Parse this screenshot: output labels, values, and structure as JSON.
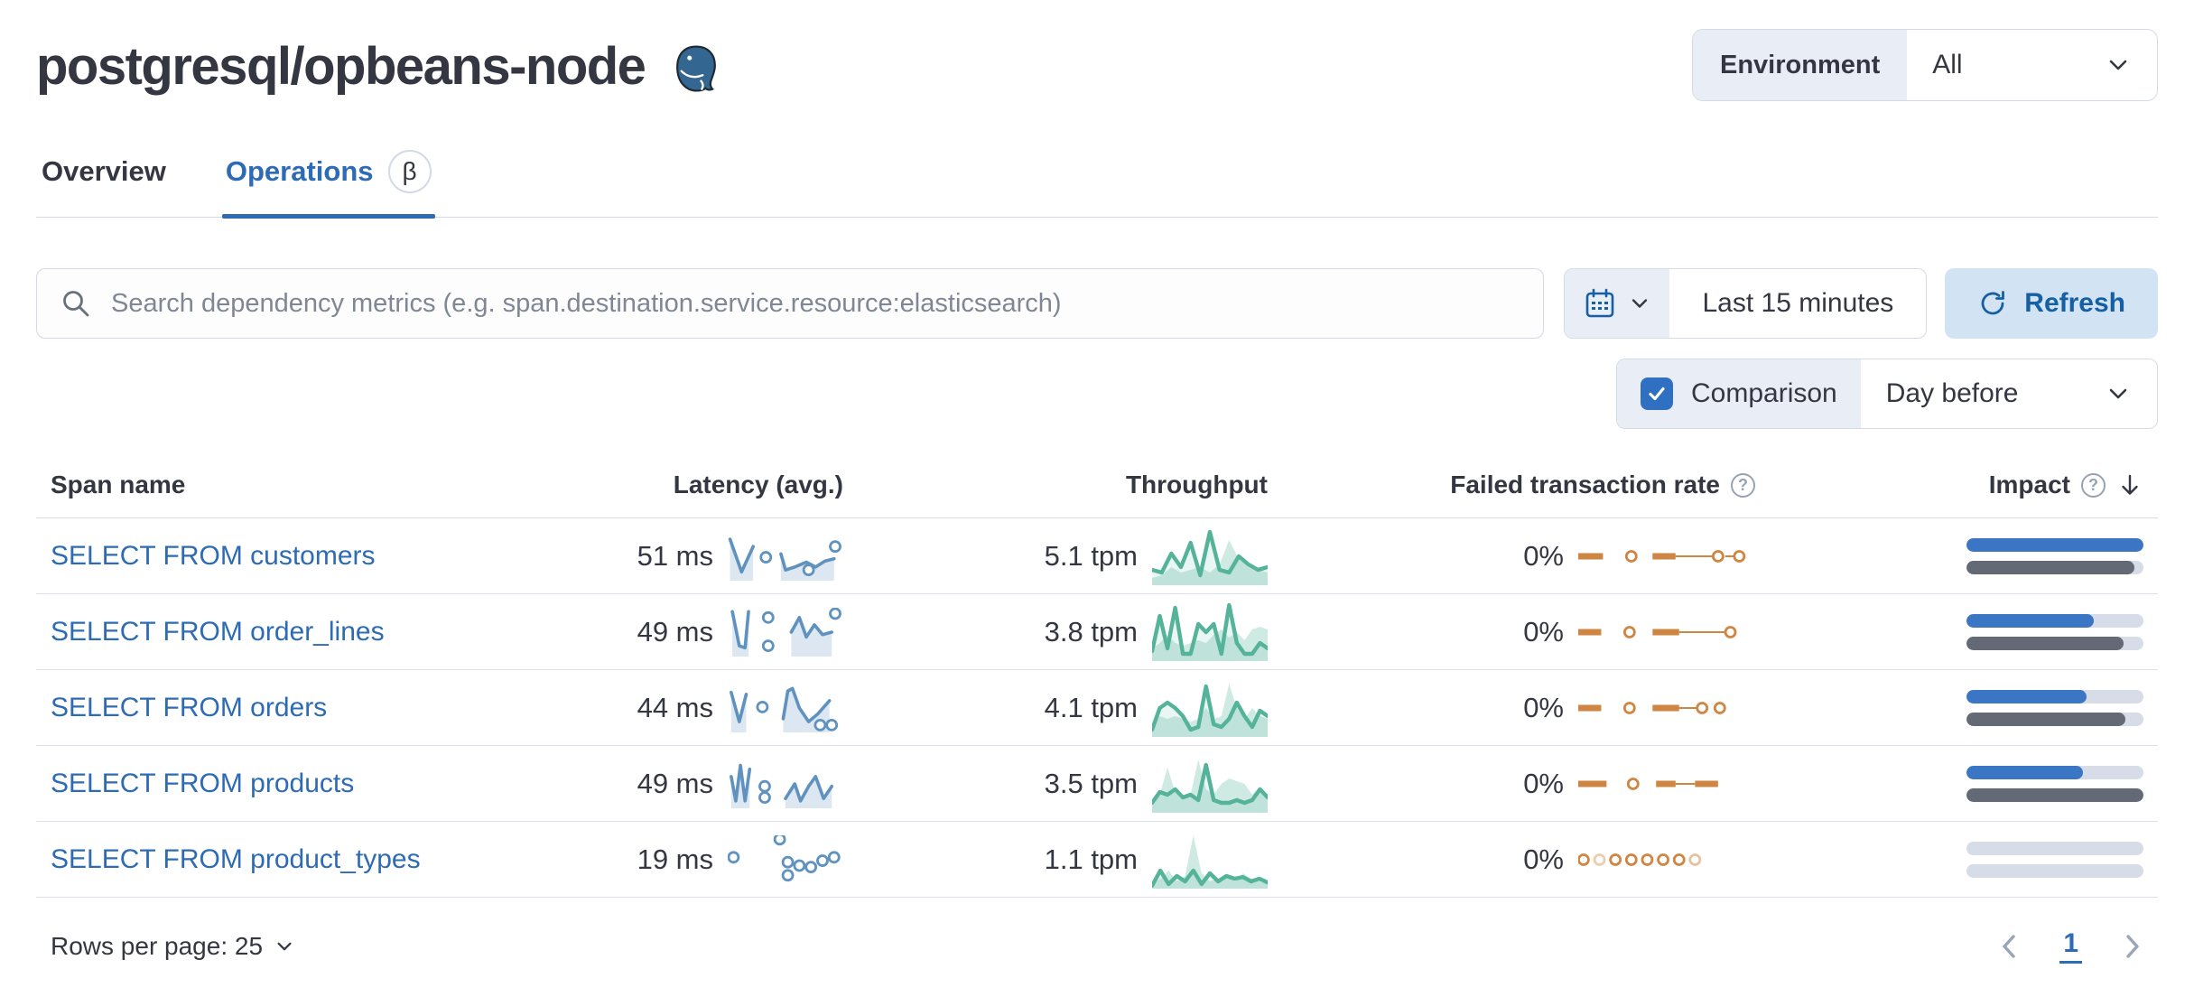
{
  "colors": {
    "link_blue": "#2d6bb4",
    "impact_current": "#3b76c4",
    "impact_previous": "#636a75",
    "spark_latency": "#6092c0",
    "spark_throughput": "#54b399",
    "spark_failed": "#ce8642",
    "refresh_bg": "#d2e4f4",
    "form_label_bg": "#e9edf6",
    "border": "#d3dae6"
  },
  "header": {
    "title": "postgresql/opbeans-node",
    "environment_label": "Environment",
    "environment_value": "All"
  },
  "tabs": [
    {
      "label": "Overview",
      "active": false
    },
    {
      "label": "Operations",
      "active": true,
      "badge": "β"
    }
  ],
  "toolbar": {
    "search_placeholder": "Search dependency metrics (e.g. span.destination.service.resource:elasticsearch)",
    "time_range": "Last 15 minutes",
    "refresh_label": "Refresh",
    "comparison_label": "Comparison",
    "comparison_checked": true,
    "comparison_value": "Day before"
  },
  "table": {
    "columns": [
      "Span name",
      "Latency (avg.)",
      "Throughput",
      "Failed transaction rate",
      "Impact"
    ],
    "rows": [
      {
        "name": "SELECT FROM customers",
        "latency": "51 ms",
        "throughput": "5.1 tpm",
        "failed_rate": "0%",
        "impact": {
          "current": 100,
          "previous": 95
        },
        "latency_spark": {
          "segs": [
            [
              [
                0.02,
                0.15
              ],
              [
                0.12,
                0.82
              ],
              [
                0.22,
                0.3
              ]
            ],
            [
              [
                0.46,
                0.45
              ],
              [
                0.5,
                0.78
              ],
              [
                0.58,
                0.72
              ],
              [
                0.68,
                0.62
              ],
              [
                0.76,
                0.72
              ],
              [
                0.84,
                0.6
              ],
              [
                0.92,
                0.55
              ]
            ]
          ],
          "dots": [
            [
              0.33,
              0.52
            ],
            [
              0.7,
              0.78
            ],
            [
              0.93,
              0.3
            ]
          ]
        },
        "throughput_spark": {
          "prev": [
            0.1,
            0.15,
            0.3,
            0.2,
            0.25,
            0.3,
            0.2,
            0.35,
            0.8,
            0.45,
            0.3,
            0.25,
            0.2
          ],
          "curr": [
            0.25,
            0.2,
            0.55,
            0.3,
            0.75,
            0.15,
            0.95,
            0.25,
            0.2,
            0.5,
            0.35,
            0.25,
            0.3
          ]
        },
        "failed_spark": [
          {
            "t": "dash",
            "x0": 0,
            "x1": 0.14
          },
          {
            "t": "dot",
            "x": 0.3
          },
          {
            "t": "dash",
            "x0": 0.42,
            "x1": 0.55
          },
          {
            "t": "line",
            "x0": 0.55,
            "x1": 0.76
          },
          {
            "t": "dot",
            "x": 0.79
          },
          {
            "t": "line",
            "x0": 0.83,
            "x1": 0.88
          },
          {
            "t": "dot",
            "x": 0.91
          }
        ]
      },
      {
        "name": "SELECT FROM order_lines",
        "latency": "49 ms",
        "throughput": "3.8 tpm",
        "failed_rate": "0%",
        "impact": {
          "current": 72,
          "previous": 89
        },
        "latency_spark": {
          "segs": [
            [
              [
                0.04,
                0.08
              ],
              [
                0.1,
                0.78
              ],
              [
                0.15,
                0.82
              ],
              [
                0.18,
                0.08
              ]
            ],
            [
              [
                0.55,
                0.5
              ],
              [
                0.62,
                0.2
              ],
              [
                0.68,
                0.6
              ],
              [
                0.75,
                0.35
              ],
              [
                0.82,
                0.55
              ],
              [
                0.9,
                0.5
              ]
            ]
          ],
          "dots": [
            [
              0.35,
              0.2
            ],
            [
              0.35,
              0.78
            ],
            [
              0.93,
              0.12
            ]
          ]
        },
        "throughput_spark": {
          "prev": [
            0.2,
            0.3,
            0.45,
            0.3,
            0.25,
            0.3,
            0.35,
            0.3,
            0.45,
            0.55,
            0.4,
            0.5,
            0.35,
            0.55,
            0.6,
            0.55
          ],
          "curr": [
            0.15,
            0.8,
            0.2,
            0.95,
            0.1,
            0.1,
            0.65,
            0.5,
            0.65,
            0.1,
            1.0,
            0.3,
            0.1,
            0.1,
            0.3,
            0.2
          ]
        },
        "failed_spark": [
          {
            "t": "dash",
            "x0": 0,
            "x1": 0.13
          },
          {
            "t": "dot",
            "x": 0.29
          },
          {
            "t": "dash",
            "x0": 0.42,
            "x1": 0.57
          },
          {
            "t": "line",
            "x0": 0.57,
            "x1": 0.83
          },
          {
            "t": "dot",
            "x": 0.86
          }
        ]
      },
      {
        "name": "SELECT FROM orders",
        "latency": "44 ms",
        "throughput": "4.1 tpm",
        "failed_rate": "0%",
        "impact": {
          "current": 68,
          "previous": 90
        },
        "latency_spark": {
          "segs": [
            [
              [
                0.03,
                0.18
              ],
              [
                0.1,
                0.78
              ],
              [
                0.16,
                0.22
              ]
            ],
            [
              [
                0.48,
                0.72
              ],
              [
                0.52,
                0.15
              ],
              [
                0.56,
                0.1
              ],
              [
                0.62,
                0.5
              ],
              [
                0.7,
                0.78
              ],
              [
                0.78,
                0.62
              ],
              [
                0.88,
                0.35
              ]
            ]
          ],
          "dots": [
            [
              0.3,
              0.48
            ],
            [
              0.8,
              0.85
            ],
            [
              0.9,
              0.85
            ]
          ]
        },
        "throughput_spark": {
          "prev": [
            0.2,
            0.35,
            0.3,
            0.35,
            0.3,
            0.25,
            0.3,
            0.5,
            0.3,
            0.35,
            0.95,
            0.5,
            0.3,
            0.5,
            0.35,
            0.3
          ],
          "curr": [
            0.1,
            0.5,
            0.6,
            0.5,
            0.35,
            0.1,
            0.15,
            0.9,
            0.2,
            0.15,
            0.3,
            0.6,
            0.35,
            0.15,
            0.45,
            0.35
          ]
        },
        "failed_spark": [
          {
            "t": "dash",
            "x0": 0,
            "x1": 0.13
          },
          {
            "t": "dot",
            "x": 0.29
          },
          {
            "t": "dash",
            "x0": 0.42,
            "x1": 0.57
          },
          {
            "t": "line",
            "x0": 0.57,
            "x1": 0.67
          },
          {
            "t": "dot",
            "x": 0.7
          },
          {
            "t": "dot",
            "x": 0.8
          }
        ]
      },
      {
        "name": "SELECT FROM products",
        "latency": "49 ms",
        "throughput": "3.5 tpm",
        "failed_rate": "0%",
        "impact": {
          "current": 66,
          "previous": 100
        },
        "latency_spark": {
          "segs": [
            [
              [
                0.03,
                0.35
              ],
              [
                0.07,
                0.85
              ],
              [
                0.11,
                0.12
              ],
              [
                0.15,
                0.85
              ],
              [
                0.19,
                0.2
              ]
            ],
            [
              [
                0.5,
                0.8
              ],
              [
                0.58,
                0.5
              ],
              [
                0.63,
                0.85
              ],
              [
                0.7,
                0.55
              ],
              [
                0.76,
                0.35
              ],
              [
                0.83,
                0.8
              ],
              [
                0.9,
                0.55
              ]
            ]
          ],
          "dots": [
            [
              0.32,
              0.55
            ],
            [
              0.32,
              0.78
            ]
          ]
        },
        "throughput_spark": {
          "prev": [
            0.1,
            0.3,
            0.8,
            0.35,
            0.25,
            0.3,
            0.95,
            0.4,
            0.3,
            0.5,
            0.6,
            0.55,
            0.5,
            0.3,
            0.45,
            0.2
          ],
          "curr": [
            0.15,
            0.35,
            0.3,
            0.4,
            0.25,
            0.3,
            0.2,
            0.85,
            0.2,
            0.15,
            0.15,
            0.2,
            0.15,
            0.2,
            0.4,
            0.25
          ]
        },
        "failed_spark": [
          {
            "t": "dash",
            "x0": 0,
            "x1": 0.16
          },
          {
            "t": "dot",
            "x": 0.31
          },
          {
            "t": "dash",
            "x0": 0.44,
            "x1": 0.55
          },
          {
            "t": "line",
            "x0": 0.55,
            "x1": 0.66
          },
          {
            "t": "dash",
            "x0": 0.66,
            "x1": 0.79
          }
        ]
      },
      {
        "name": "SELECT FROM product_types",
        "latency": "19 ms",
        "throughput": "1.1 tpm",
        "failed_rate": "0%",
        "impact": {
          "current": 0,
          "previous": 0
        },
        "latency_spark": {
          "segs": [],
          "dots": [
            [
              0.05,
              0.45
            ],
            [
              0.45,
              0.08
            ],
            [
              0.52,
              0.55
            ],
            [
              0.52,
              0.82
            ],
            [
              0.62,
              0.62
            ],
            [
              0.72,
              0.65
            ],
            [
              0.82,
              0.52
            ],
            [
              0.92,
              0.45
            ]
          ]
        },
        "throughput_spark": {
          "prev": [
            0.05,
            0.15,
            0.3,
            0.1,
            0.2,
            0.95,
            0.25,
            0.1,
            0.15,
            0.2,
            0.1,
            0.25,
            0.15,
            0.1,
            0.05
          ],
          "curr": [
            0.02,
            0.3,
            0.05,
            0.2,
            0.1,
            0.3,
            0.05,
            0.25,
            0.1,
            0.2,
            0.15,
            0.18,
            0.1,
            0.15,
            0.08
          ]
        },
        "failed_spark": [
          {
            "t": "dot",
            "x": 0.03
          },
          {
            "t": "dot",
            "x": 0.12,
            "o": 0.4
          },
          {
            "t": "dot",
            "x": 0.21
          },
          {
            "t": "dot",
            "x": 0.3
          },
          {
            "t": "dot",
            "x": 0.39
          },
          {
            "t": "dot",
            "x": 0.48
          },
          {
            "t": "dot",
            "x": 0.57
          },
          {
            "t": "dot",
            "x": 0.66,
            "o": 0.5
          }
        ]
      }
    ]
  },
  "footer": {
    "rows_per_page_label": "Rows per page: 25",
    "page": "1"
  }
}
